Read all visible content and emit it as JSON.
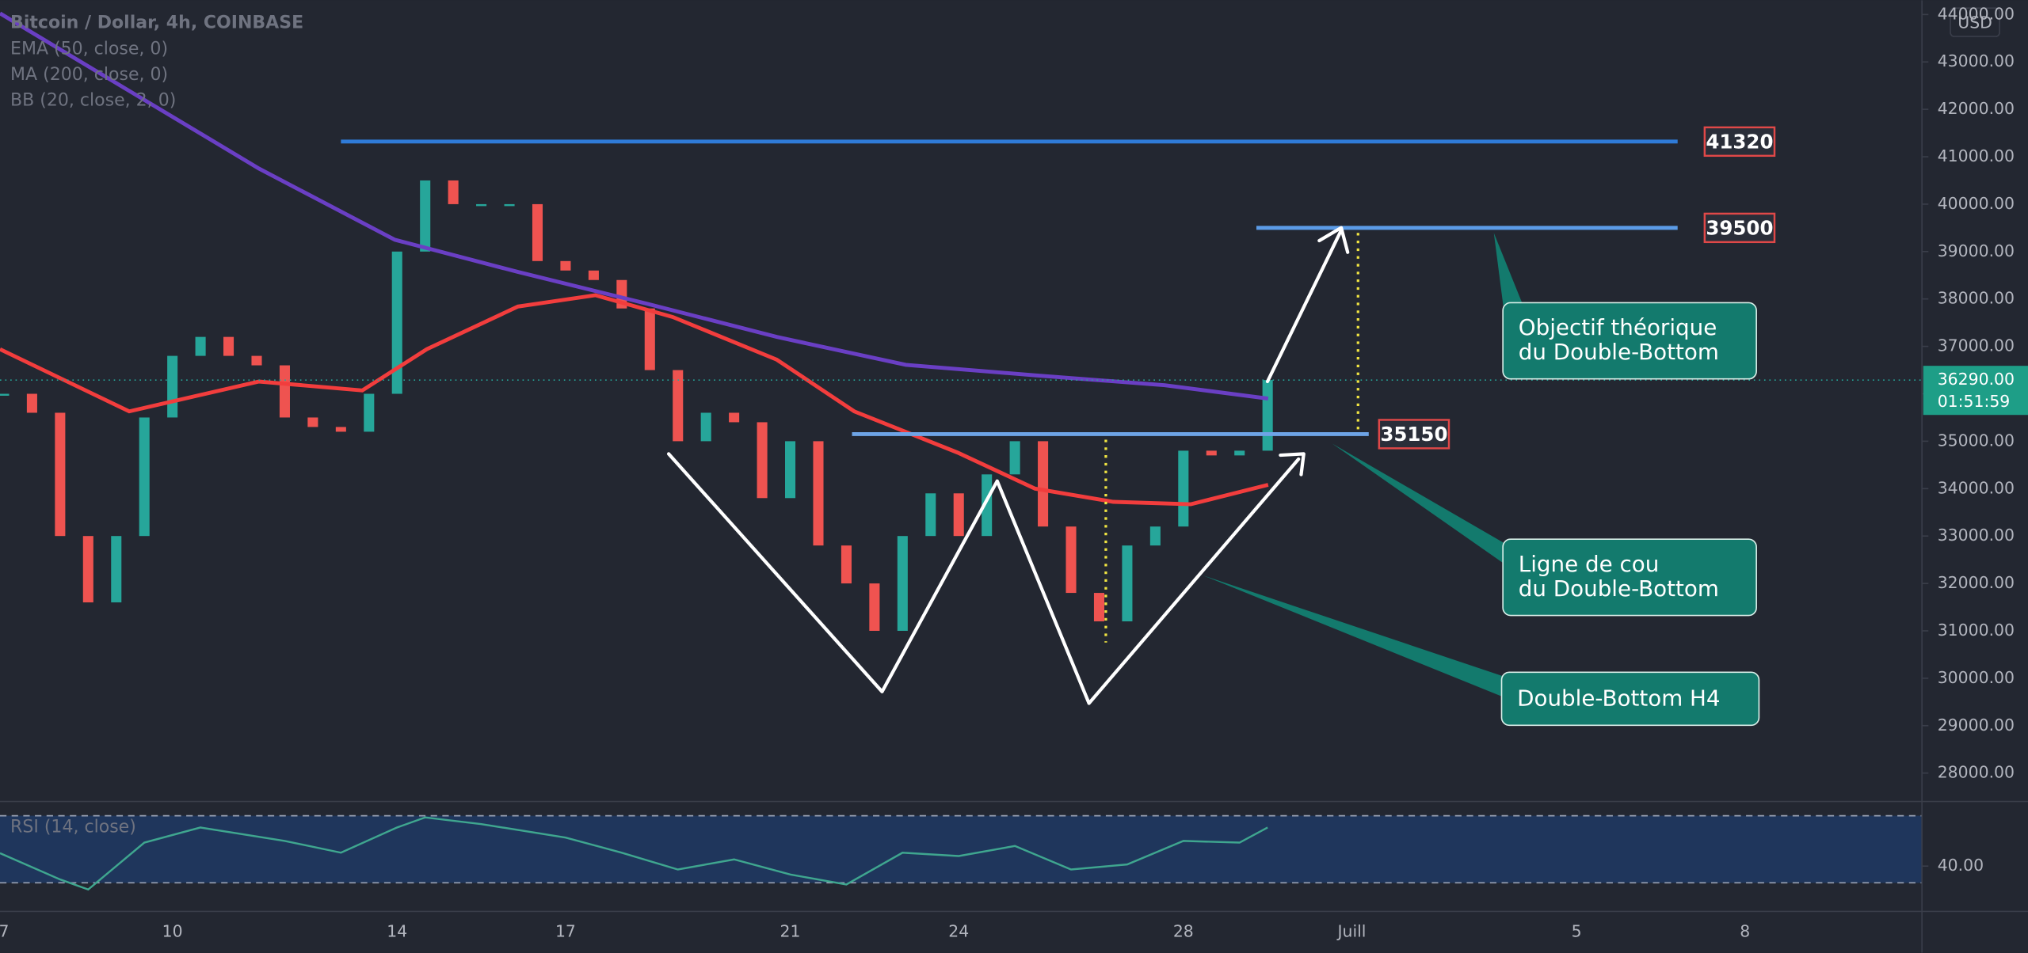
{
  "chart_data": [
    {
      "type": "candlestick",
      "title": "Bitcoin / Dollar, 4h, COINBASE",
      "currency": "USD",
      "x": [
        0,
        0.5,
        1,
        1.5,
        2,
        2.5,
        3,
        3.5,
        4,
        4.5,
        5,
        5.5,
        6,
        6.5,
        7,
        7.5,
        8,
        8.5,
        9,
        9.5,
        10,
        10.5,
        11,
        11.5,
        12,
        12.5,
        13,
        13.5,
        14,
        14.5,
        15,
        15.5,
        16,
        16.5,
        17,
        17.5,
        18,
        18.5,
        19,
        19.5,
        20,
        20.5,
        21,
        21.5,
        22,
        22.5
      ],
      "values": [
        36000,
        35600,
        33000,
        31600,
        33000,
        35500,
        36800,
        37200,
        36800,
        36600,
        35500,
        35300,
        35200,
        36000,
        39000,
        40500,
        40000,
        40000,
        40000,
        38800,
        38600,
        38400,
        37800,
        36500,
        35000,
        35600,
        35400,
        33800,
        35000,
        32800,
        32000,
        31000,
        33000,
        33900,
        33000,
        34300,
        35000,
        33200,
        31800,
        31200,
        32800,
        33200,
        34800,
        34700,
        34800,
        36290
      ],
      "up_color": "#26a69a",
      "down_color": "#ef5350",
      "series": [
        {
          "name": "EMA (50, close, 0)",
          "color": "#f23d3d",
          "x": [
            -0.07,
            2.23,
            4.54,
            6.38,
            7.53,
            9.15,
            10.53,
            11.91,
            13.76,
            15.14,
            16.98,
            18.36,
            19.75,
            21.13,
            22.51
          ],
          "values": [
            36940,
            35630,
            36260,
            36070,
            36940,
            37840,
            38080,
            37620,
            36720,
            35630,
            34760,
            34000,
            33720,
            33670,
            34080
          ]
        },
        {
          "name": "MA (200, close, 0)",
          "color": "#6a3fc4",
          "x": [
            -0.07,
            2.23,
            4.54,
            6.96,
            9.15,
            11.45,
            13.76,
            16.06,
            18.36,
            20.67,
            22.51
          ],
          "values": [
            44025,
            42390,
            40750,
            39250,
            38570,
            37900,
            37200,
            36610,
            36390,
            36180,
            35900
          ]
        }
      ],
      "bb_name": "BB (20, close, 2, 0)",
      "xlim": [
        -0.07,
        34.15
      ],
      "xticks": [
        {
          "value": 0,
          "label": "7"
        },
        {
          "value": 3,
          "label": "10"
        },
        {
          "value": 7,
          "label": "14"
        },
        {
          "value": 10,
          "label": "17"
        },
        {
          "value": 14,
          "label": "21"
        },
        {
          "value": 17,
          "label": "24"
        },
        {
          "value": 21,
          "label": "28"
        },
        {
          "value": 24,
          "label": "Juill"
        },
        {
          "value": 28,
          "label": "5"
        },
        {
          "value": 31,
          "label": "8"
        }
      ],
      "ylim": [
        27400,
        44300
      ],
      "yticks": [
        {
          "value": 28000,
          "label": "28000.00"
        },
        {
          "value": 29000,
          "label": "29000.00"
        },
        {
          "value": 30000,
          "label": "30000.00"
        },
        {
          "value": 31000,
          "label": "31000.00"
        },
        {
          "value": 32000,
          "label": "32000.00"
        },
        {
          "value": 33000,
          "label": "33000.00"
        },
        {
          "value": 34000,
          "label": "34000.00"
        },
        {
          "value": 35000,
          "label": "35000.00"
        },
        {
          "value": 36000,
          "label": "36000.00"
        },
        {
          "value": 37000,
          "label": "37000.00"
        },
        {
          "value": 38000,
          "label": "38000.00"
        },
        {
          "value": 39000,
          "label": "39000.00"
        },
        {
          "value": 40000,
          "label": "40000.00"
        },
        {
          "value": 41000,
          "label": "41000.00"
        },
        {
          "value": 42000,
          "label": "42000.00"
        },
        {
          "value": 43000,
          "label": "43000.00"
        },
        {
          "value": 44000,
          "label": "44000.00"
        }
      ],
      "levels": [
        {
          "value": 41320,
          "label": "41320",
          "from": 6.0,
          "to": 29.8,
          "color": "#2f7bd8"
        },
        {
          "value": 39500,
          "label": "39500",
          "from": 22.3,
          "to": 29.8,
          "color": "#5b9be6"
        },
        {
          "value": 35150,
          "label": "35150",
          "from": 15.1,
          "to": 24.3,
          "color": "#6ea4e6"
        }
      ],
      "last_price": {
        "value": 36290,
        "label": "36290.00"
      },
      "countdown": "01:51:59",
      "annotations": [
        {
          "lines": [
            "Objectif théorique",
            "du Double-Bottom"
          ]
        },
        {
          "lines": [
            "Ligne de cou",
            "du Double-Bottom"
          ]
        },
        {
          "lines": [
            "Double-Bottom H4"
          ]
        }
      ],
      "grid": false
    },
    {
      "type": "line",
      "title": "RSI (14, close)",
      "color": "#3fa68f",
      "x": [
        -0.07,
        1,
        1.5,
        2.5,
        3.5,
        5,
        6,
        7,
        7.5,
        8.5,
        10,
        11,
        12,
        13,
        14,
        15,
        16,
        17,
        18,
        19,
        20,
        21,
        22,
        22.5
      ],
      "values": [
        47.7,
        32,
        26,
        54,
        63,
        55,
        48,
        63,
        69,
        65,
        57,
        48,
        38,
        44,
        35,
        29,
        48,
        46,
        52,
        38,
        41,
        55,
        54,
        63
      ],
      "ylim": [
        13,
        78.5
      ],
      "yticks": [
        {
          "value": 40,
          "label": "40.00"
        }
      ],
      "levels": [
        70,
        30
      ]
    }
  ]
}
